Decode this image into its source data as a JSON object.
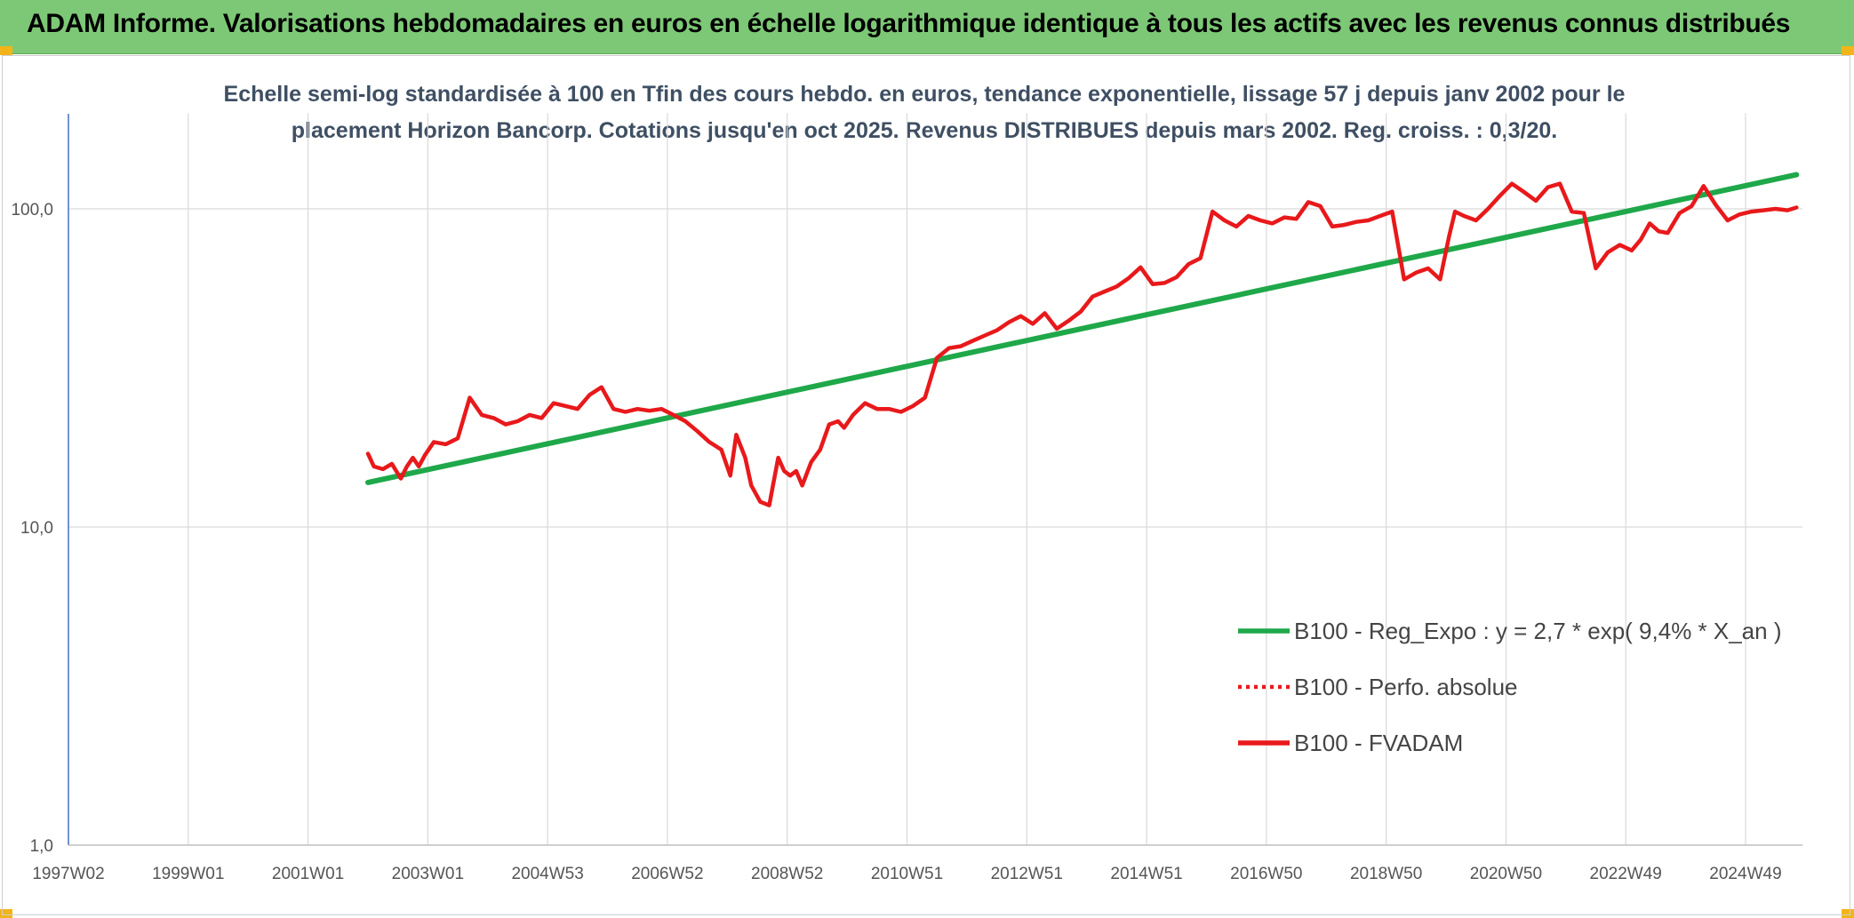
{
  "header": {
    "title": "ADAM Informe. Valorisations hebdomadaires en euros en échelle logarithmique identique à tous les actifs avec les revenus connus distribués"
  },
  "chart_data": {
    "type": "line",
    "title_line1": "Echelle semi-log standardisée à 100 en Tfin des cours hebdo. en euros, tendance exponentielle, lissage 57 j depuis janv 2002 pour le",
    "title_line2": "placement Horizon Bancorp. Cotations jusqu'en oct 2025. Revenus DISTRIBUES depuis mars 2002. Reg. croiss. : 0,3/20.",
    "yscale": "log",
    "ylim": [
      1,
      200
    ],
    "xlim": [
      1997.0,
      2025.95
    ],
    "grid": "on",
    "legend_position": "right",
    "y_ticks": [
      {
        "value": 1,
        "label": "1,0"
      },
      {
        "value": 10,
        "label": "10,0"
      },
      {
        "value": 100,
        "label": "100,0"
      }
    ],
    "x_ticks": [
      {
        "value": 1997.0,
        "label": "1997W02"
      },
      {
        "value": 1999.0,
        "label": "1999W01"
      },
      {
        "value": 2001.0,
        "label": "2001W01"
      },
      {
        "value": 2003.0,
        "label": "2003W01"
      },
      {
        "value": 2005.0,
        "label": "2004W53"
      },
      {
        "value": 2007.0,
        "label": "2006W52"
      },
      {
        "value": 2009.0,
        "label": "2008W52"
      },
      {
        "value": 2011.0,
        "label": "2010W51"
      },
      {
        "value": 2013.0,
        "label": "2012W51"
      },
      {
        "value": 2015.0,
        "label": "2014W51"
      },
      {
        "value": 2017.0,
        "label": "2016W50"
      },
      {
        "value": 2019.0,
        "label": "2018W50"
      },
      {
        "value": 2021.0,
        "label": "2020W50"
      },
      {
        "value": 2023.0,
        "label": "2022W49"
      },
      {
        "value": 2025.0,
        "label": "2024W49"
      }
    ],
    "series": [
      {
        "name": "B100 - Reg_Expo : y = 2,7 * exp( 9,4% *  X_an )",
        "color": "#1fa84a",
        "style": "solid",
        "x": [
          2002.0,
          2025.85
        ],
        "y": [
          13.8,
          128
        ]
      },
      {
        "name": "B100 - Perfo. absolue",
        "color": "#e8191b",
        "style": "dotted",
        "x": [],
        "y": []
      },
      {
        "name": "B100 - FVADAM",
        "color": "#e8191b",
        "style": "solid",
        "x": [
          2002.0,
          2002.1,
          2002.25,
          2002.4,
          2002.55,
          2002.65,
          2002.75,
          2002.85,
          2002.95,
          2003.1,
          2003.3,
          2003.5,
          2003.7,
          2003.9,
          2004.1,
          2004.3,
          2004.5,
          2004.7,
          2004.9,
          2005.1,
          2005.3,
          2005.5,
          2005.7,
          2005.9,
          2006.1,
          2006.3,
          2006.5,
          2006.7,
          2006.9,
          2007.1,
          2007.3,
          2007.5,
          2007.7,
          2007.9,
          2008.05,
          2008.15,
          2008.3,
          2008.4,
          2008.55,
          2008.7,
          2008.85,
          2008.95,
          2009.05,
          2009.15,
          2009.25,
          2009.4,
          2009.55,
          2009.7,
          2009.85,
          2009.95,
          2010.1,
          2010.3,
          2010.5,
          2010.7,
          2010.9,
          2011.1,
          2011.3,
          2011.5,
          2011.7,
          2011.9,
          2012.1,
          2012.3,
          2012.5,
          2012.7,
          2012.9,
          2013.1,
          2013.3,
          2013.5,
          2013.7,
          2013.9,
          2014.1,
          2014.3,
          2014.5,
          2014.7,
          2014.9,
          2015.1,
          2015.3,
          2015.5,
          2015.7,
          2015.9,
          2016.1,
          2016.3,
          2016.5,
          2016.7,
          2016.9,
          2017.1,
          2017.3,
          2017.5,
          2017.7,
          2017.9,
          2018.1,
          2018.3,
          2018.5,
          2018.7,
          2018.9,
          2019.1,
          2019.3,
          2019.5,
          2019.7,
          2019.9,
          2020.05,
          2020.15,
          2020.3,
          2020.5,
          2020.7,
          2020.9,
          2021.1,
          2021.3,
          2021.5,
          2021.7,
          2021.9,
          2022.1,
          2022.3,
          2022.5,
          2022.7,
          2022.9,
          2023.1,
          2023.25,
          2023.4,
          2023.55,
          2023.7,
          2023.9,
          2024.1,
          2024.3,
          2024.5,
          2024.7,
          2024.9,
          2025.1,
          2025.3,
          2025.5,
          2025.7,
          2025.85
        ],
        "y": [
          17.0,
          15.5,
          15.2,
          15.8,
          14.2,
          15.5,
          16.5,
          15.5,
          16.8,
          18.5,
          18.2,
          19.0,
          25.5,
          22.5,
          22.0,
          21.0,
          21.5,
          22.5,
          22.0,
          24.5,
          24.0,
          23.5,
          26.0,
          27.5,
          23.5,
          23.0,
          23.5,
          23.2,
          23.5,
          22.5,
          21.5,
          20.0,
          18.5,
          17.5,
          14.5,
          19.5,
          16.5,
          13.5,
          12.0,
          11.7,
          16.5,
          15.0,
          14.5,
          15.0,
          13.5,
          16.0,
          17.5,
          21.0,
          21.5,
          20.5,
          22.5,
          24.5,
          23.5,
          23.5,
          23.0,
          24.0,
          25.5,
          34.0,
          36.5,
          37.0,
          38.5,
          40.0,
          41.5,
          44.0,
          46.0,
          43.5,
          47.0,
          42.0,
          44.5,
          47.5,
          53.0,
          55.0,
          57.0,
          60.5,
          65.5,
          58.0,
          58.5,
          61.0,
          67.0,
          70.0,
          98.0,
          92.0,
          88.0,
          95.0,
          92.0,
          90.0,
          94.0,
          93.0,
          105.0,
          102.0,
          88.0,
          89.0,
          91.0,
          92.0,
          95.0,
          98.0,
          60.0,
          63.0,
          65.0,
          60.0,
          82.0,
          98.0,
          95.0,
          92.0,
          100.0,
          110.0,
          120.0,
          113.0,
          106.0,
          117.0,
          120.0,
          98.0,
          97.0,
          65.0,
          73.0,
          77.0,
          74.0,
          80.0,
          90.0,
          85.0,
          84.0,
          97.0,
          102.0,
          118.0,
          103.0,
          92.0,
          96.0,
          98.0,
          99.0,
          100.0,
          99.0,
          101.0
        ]
      }
    ]
  }
}
